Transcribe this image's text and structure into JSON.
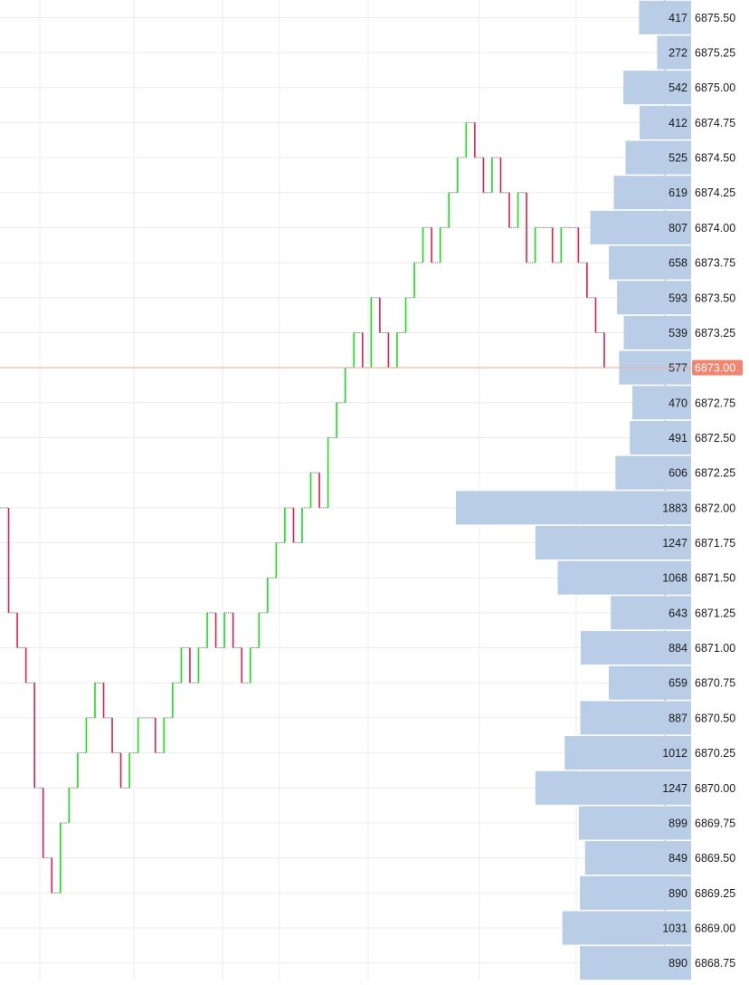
{
  "chart_data": {
    "type": "line",
    "description": "Tick/price line chart with volume profile (volume at price) bars and right price axis",
    "title": "",
    "xlabel": "",
    "ylabel": "",
    "ylim": [
      6868.625,
      6875.625
    ],
    "tick_size": 0.25,
    "grid": true,
    "current_price": 6873.0,
    "current_price_label": "6873.00",
    "price_levels": [
      {
        "price": "6875.50",
        "volume": 417
      },
      {
        "price": "6875.25",
        "volume": 272
      },
      {
        "price": "6875.00",
        "volume": 542
      },
      {
        "price": "6874.75",
        "volume": 412
      },
      {
        "price": "6874.50",
        "volume": 525
      },
      {
        "price": "6874.25",
        "volume": 619
      },
      {
        "price": "6874.00",
        "volume": 807
      },
      {
        "price": "6873.75",
        "volume": 658
      },
      {
        "price": "6873.50",
        "volume": 593
      },
      {
        "price": "6873.25",
        "volume": 539
      },
      {
        "price": "6873.00",
        "volume": 577
      },
      {
        "price": "6872.75",
        "volume": 470
      },
      {
        "price": "6872.50",
        "volume": 491
      },
      {
        "price": "6872.25",
        "volume": 606
      },
      {
        "price": "6872.00",
        "volume": 1883
      },
      {
        "price": "6871.75",
        "volume": 1247
      },
      {
        "price": "6871.50",
        "volume": 1068
      },
      {
        "price": "6871.25",
        "volume": 643
      },
      {
        "price": "6871.00",
        "volume": 884
      },
      {
        "price": "6870.75",
        "volume": 659
      },
      {
        "price": "6870.50",
        "volume": 887
      },
      {
        "price": "6870.25",
        "volume": 1012
      },
      {
        "price": "6870.00",
        "volume": 1247
      },
      {
        "price": "6869.75",
        "volume": 899
      },
      {
        "price": "6869.50",
        "volume": 849
      },
      {
        "price": "6869.25",
        "volume": 890
      },
      {
        "price": "6869.00",
        "volume": 1031
      },
      {
        "price": "6868.75",
        "volume": 890
      }
    ],
    "price_path": [
      6872.0,
      6871.25,
      6871.0,
      6870.75,
      6870.0,
      6869.5,
      6869.25,
      6869.75,
      6870.0,
      6870.25,
      6870.5,
      6870.75,
      6870.5,
      6870.25,
      6870.0,
      6870.25,
      6870.5,
      6870.5,
      6870.25,
      6870.5,
      6870.75,
      6871.0,
      6870.75,
      6871.0,
      6871.25,
      6871.0,
      6871.25,
      6871.0,
      6870.75,
      6871.0,
      6871.25,
      6871.5,
      6871.75,
      6872.0,
      6871.75,
      6872.0,
      6872.25,
      6872.0,
      6872.5,
      6872.75,
      6873.0,
      6873.25,
      6873.0,
      6873.5,
      6873.25,
      6873.0,
      6873.25,
      6873.5,
      6873.75,
      6874.0,
      6873.75,
      6874.0,
      6874.25,
      6874.5,
      6874.75,
      6874.5,
      6874.25,
      6874.5,
      6874.25,
      6874.0,
      6874.25,
      6873.75,
      6874.0,
      6874.0,
      6873.75,
      6874.0,
      6874.0,
      6873.75,
      6873.5,
      6873.25,
      6873.0
    ],
    "colors": {
      "up": "#18e018",
      "down": "#e0204a",
      "neutral": "#777777",
      "volume_bar": "#b9cde6",
      "current_price_line": "#f5a89a",
      "current_price_badge": "#f0866f",
      "grid": "#ececec",
      "axis_text": "#1b1b1b"
    }
  }
}
